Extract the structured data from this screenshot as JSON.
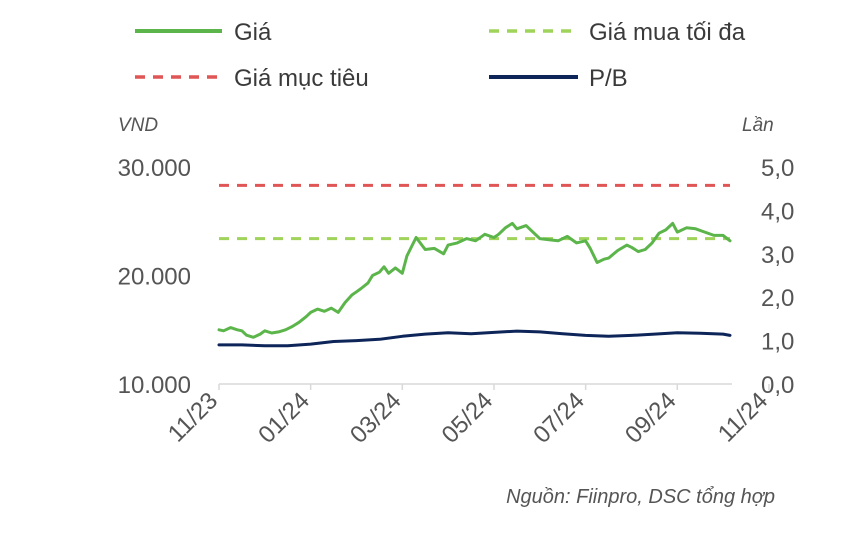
{
  "chart_data": {
    "type": "line",
    "legend": {
      "placement": "top",
      "entries": [
        {
          "key": "price",
          "label": "Giá",
          "color": "#5cb54a",
          "style": "solid"
        },
        {
          "key": "max_buy",
          "label": "Giá mua tối đa",
          "color": "#9fd35a",
          "style": "dashed"
        },
        {
          "key": "target",
          "label": "Giá mục tiêu",
          "color": "#e05555",
          "style": "dashed"
        },
        {
          "key": "pb",
          "label": "P/B",
          "color": "#0d2559",
          "style": "solid"
        }
      ]
    },
    "ylabel_left": "VND",
    "ylabel_right": "Lần",
    "ylim_left": [
      10000,
      30000
    ],
    "ylim_right": [
      0.0,
      5.0
    ],
    "yticks_left": [
      "10.000",
      "20.000",
      "30.000"
    ],
    "yticks_right": [
      "0,0",
      "1,0",
      "2,0",
      "3,0",
      "4,0",
      "5,0"
    ],
    "xticks": [
      "11/23",
      "01/24",
      "03/24",
      "05/24",
      "07/24",
      "09/24",
      "11/24"
    ],
    "grid": false,
    "source": "Nguồn: Fiinpro, DSC tổng hợp",
    "series": [
      {
        "key": "price",
        "axis": "left",
        "x": [
          0,
          0.1,
          0.25,
          0.4,
          0.5,
          0.6,
          0.75,
          0.9,
          1.0,
          1.15,
          1.3,
          1.45,
          1.6,
          1.75,
          1.9,
          2.0,
          2.15,
          2.3,
          2.45,
          2.6,
          2.75,
          2.9,
          3.0,
          3.1,
          3.25,
          3.35,
          3.5,
          3.6,
          3.7,
          3.85,
          4.0,
          4.1,
          4.3,
          4.5,
          4.7,
          4.9,
          5.0,
          5.2,
          5.4,
          5.6,
          5.8,
          6.0,
          6.1,
          6.25,
          6.4,
          6.5,
          6.7,
          6.85,
          7.0,
          7.2,
          7.4,
          7.6,
          7.8,
          8.0,
          8.1,
          8.25,
          8.4,
          8.5,
          8.7,
          8.9,
          9.0,
          9.15,
          9.3,
          9.45,
          9.6,
          9.75,
          9.9,
          10.0,
          10.2,
          10.4,
          10.6,
          10.8,
          11.0,
          11.15
        ],
        "y": [
          15000,
          14900,
          15200,
          15000,
          14900,
          14500,
          14300,
          14600,
          14900,
          14700,
          14800,
          15000,
          15300,
          15700,
          16200,
          16600,
          16900,
          16700,
          17000,
          16600,
          17500,
          18200,
          18500,
          18800,
          19300,
          20000,
          20300,
          20800,
          20200,
          20700,
          20200,
          21800,
          23500,
          22400,
          22500,
          22000,
          22800,
          23000,
          23400,
          23200,
          23800,
          23500,
          23800,
          24400,
          24800,
          24300,
          24600,
          24000,
          23400,
          23300,
          23200,
          23600,
          23000,
          23200,
          22500,
          21200,
          21500,
          21600,
          22300,
          22800,
          22600,
          22200,
          22400,
          23000,
          23900,
          24200,
          24800,
          24000,
          24400,
          24300,
          24000,
          23700,
          23700,
          23200
        ]
      },
      {
        "key": "max_buy",
        "axis": "left",
        "x": [
          0,
          11.15
        ],
        "y": [
          23400,
          23400
        ]
      },
      {
        "key": "target",
        "axis": "left",
        "x": [
          0,
          11.15
        ],
        "y": [
          28300,
          28300
        ]
      },
      {
        "key": "pb",
        "axis": "right",
        "x": [
          0,
          0.5,
          1.0,
          1.5,
          2.0,
          2.5,
          3.0,
          3.5,
          4.0,
          4.5,
          5.0,
          5.5,
          6.0,
          6.5,
          7.0,
          7.5,
          8.0,
          8.5,
          9.0,
          9.5,
          10.0,
          10.5,
          11.0,
          11.15
        ],
        "y": [
          0.9,
          0.9,
          0.88,
          0.88,
          0.92,
          0.98,
          1.0,
          1.03,
          1.1,
          1.15,
          1.18,
          1.16,
          1.19,
          1.22,
          1.2,
          1.16,
          1.12,
          1.1,
          1.12,
          1.15,
          1.18,
          1.17,
          1.15,
          1.12
        ]
      }
    ]
  }
}
